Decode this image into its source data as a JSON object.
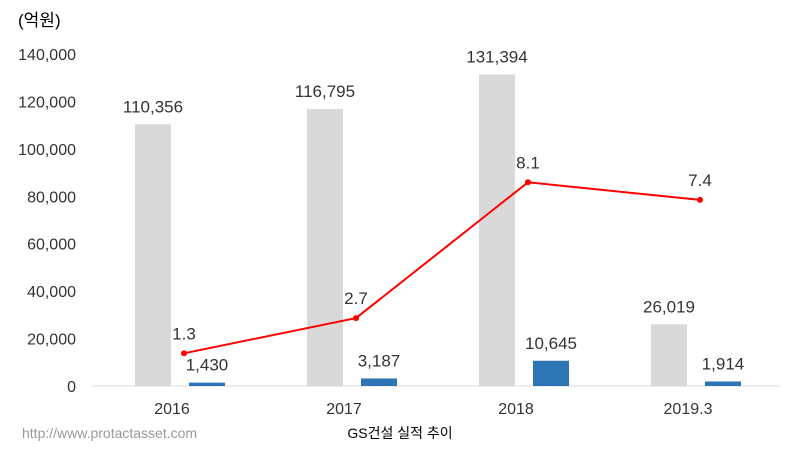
{
  "chart_data": {
    "type": "bar",
    "unit_label": "(억원)",
    "categories": [
      "2016",
      "2017",
      "2018",
      "2019.3"
    ],
    "ylim": [
      0,
      140000
    ],
    "yticks": [
      "0",
      "20,000",
      "40,000",
      "60,000",
      "80,000",
      "100,000",
      "120,000",
      "140,000"
    ],
    "grid": false,
    "series": [
      {
        "kind": "bar",
        "color": "#d9d9d9",
        "values": [
          110356,
          116795,
          131394,
          26019
        ],
        "labels": [
          "110,356",
          "116,795",
          "131,394",
          "26,019"
        ]
      },
      {
        "kind": "bar",
        "color": "#2e75b6",
        "values": [
          1430,
          3187,
          10645,
          1914
        ],
        "labels": [
          "1,430",
          "3,187",
          "10,645",
          "1,914"
        ]
      },
      {
        "kind": "line",
        "color": "#ff0000",
        "values": [
          1.3,
          2.7,
          8.1,
          7.4
        ],
        "labels": [
          "1.3",
          "2.7",
          "8.1",
          "7.4"
        ],
        "secondary_axis_range": [
          0,
          13.2
        ]
      }
    ]
  },
  "footer": {
    "source_url": "http://www.protactasset.com",
    "caption": "GS건설 실적 추이"
  }
}
